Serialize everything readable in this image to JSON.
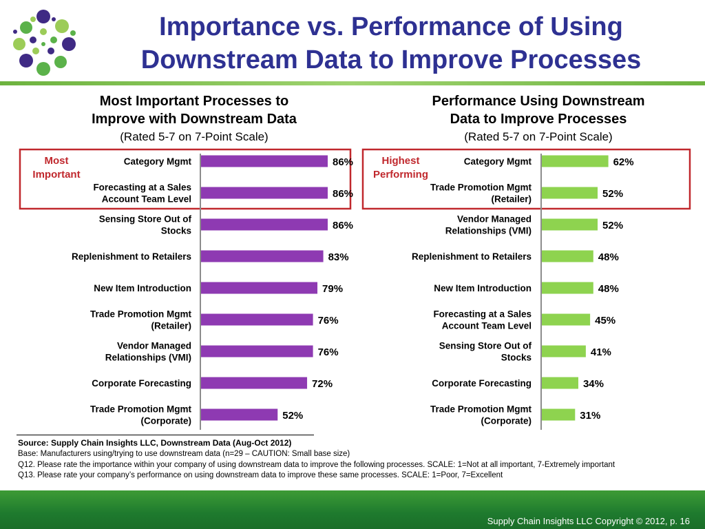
{
  "slide": {
    "title_line1": "Importance vs. Performance of Using",
    "title_line2": "Downstream Data to Improve Processes",
    "copyright": "Supply Chain Insights LLC Copyright © 2012, p. 16"
  },
  "notes": {
    "source": "Source:  Supply Chain Insights LLC, Downstream Data (Aug-Oct 2012)",
    "base": "Base:  Manufacturers using/trying to use downstream data (n=29 – CAUTION: Small base size)",
    "q12": "Q12. Please rate the importance within your company of using downstream data to improve the following processes. SCALE:  1=Not at all important, 7-Extremely important",
    "q13": "Q13. Please rate your company’s performance on using downstream data to improve these same processes.  SCALE:  1=Poor, 7=Excellent"
  },
  "colors": {
    "title": "#2e3192",
    "importance_bar": "#8e3ab2",
    "performance_bar": "#8ed34f",
    "highlight_box": "#c0282d",
    "axis": "#8c8c8c",
    "footer": "#2a8a30"
  },
  "chart_data": [
    {
      "type": "bar",
      "orientation": "horizontal",
      "title_lines": [
        "Most Important Processes to",
        "Improve with Downstream Data"
      ],
      "subtitle": "(Rated 5-7 on 7-Point Scale)",
      "highlight_label_lines": [
        "Most",
        "Important"
      ],
      "highlight_count": 2,
      "categories": [
        [
          "Category Mgmt"
        ],
        [
          "Forecasting at a Sales",
          "Account Team Level"
        ],
        [
          "Sensing Store Out of",
          "Stocks"
        ],
        [
          "Replenishment to Retailers"
        ],
        [
          "New Item Introduction"
        ],
        [
          "Trade Promotion Mgmt",
          "(Retailer)"
        ],
        [
          "Vendor Managed",
          "Relationships (VMI)"
        ],
        [
          "Corporate Forecasting"
        ],
        [
          "Trade Promotion Mgmt",
          "(Corporate)"
        ]
      ],
      "values": [
        86,
        86,
        86,
        83,
        79,
        76,
        76,
        72,
        52
      ],
      "value_labels": [
        "86%",
        "86%",
        "86%",
        "83%",
        "79%",
        "76%",
        "76%",
        "72%",
        "52%"
      ],
      "xlim": [
        0,
        100
      ]
    },
    {
      "type": "bar",
      "orientation": "horizontal",
      "title_lines": [
        "Performance Using Downstream",
        "Data to Improve Processes"
      ],
      "subtitle": "(Rated 5-7 on 7-Point Scale)",
      "highlight_label_lines": [
        "Highest",
        "Performing"
      ],
      "highlight_count": 2,
      "categories": [
        [
          "Category Mgmt"
        ],
        [
          "Trade Promotion Mgmt",
          "(Retailer)"
        ],
        [
          "Vendor Managed",
          "Relationships (VMI)"
        ],
        [
          "Replenishment to Retailers"
        ],
        [
          "New Item Introduction"
        ],
        [
          "Forecasting at a Sales",
          "Account Team Level"
        ],
        [
          "Sensing Store Out of",
          "Stocks"
        ],
        [
          "Corporate Forecasting"
        ],
        [
          "Trade Promotion Mgmt",
          "(Corporate)"
        ]
      ],
      "values": [
        62,
        52,
        52,
        48,
        48,
        45,
        41,
        34,
        31
      ],
      "value_labels": [
        "62%",
        "52%",
        "52%",
        "48%",
        "48%",
        "45%",
        "41%",
        "34%",
        "31%"
      ],
      "xlim": [
        0,
        100
      ]
    }
  ]
}
